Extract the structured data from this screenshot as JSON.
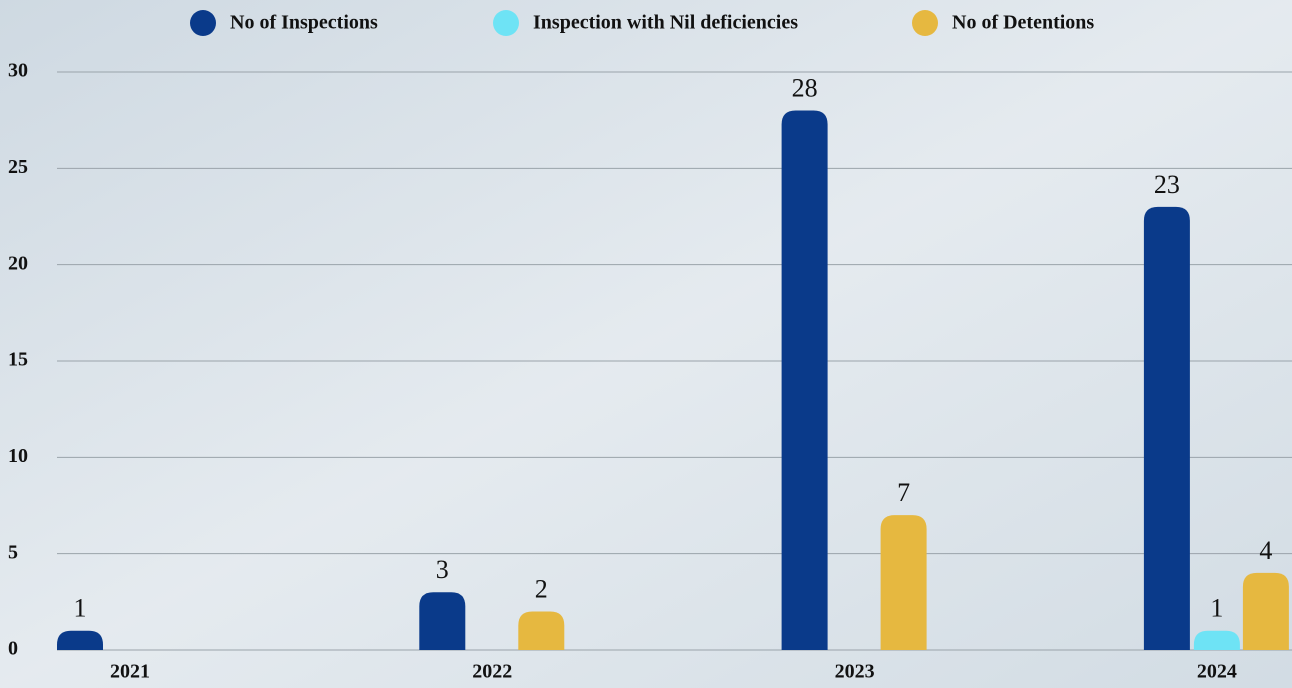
{
  "chart_data": {
    "type": "bar",
    "categories": [
      "2021",
      "2022",
      "2023",
      "2024"
    ],
    "series": [
      {
        "name": "No of Inspections",
        "color": "#0a3a8a",
        "values": [
          1,
          3,
          28,
          23
        ]
      },
      {
        "name": "Inspection with Nil deficiencies",
        "color": "#6ee3f5",
        "values": [
          null,
          null,
          null,
          1
        ]
      },
      {
        "name": "No of Detentions",
        "color": "#e6b840",
        "values": [
          null,
          2,
          7,
          4
        ]
      }
    ],
    "ylim": [
      0,
      30
    ],
    "yticks": [
      0,
      5,
      10,
      15,
      20,
      25,
      30
    ],
    "grid": true,
    "legend": "top"
  }
}
